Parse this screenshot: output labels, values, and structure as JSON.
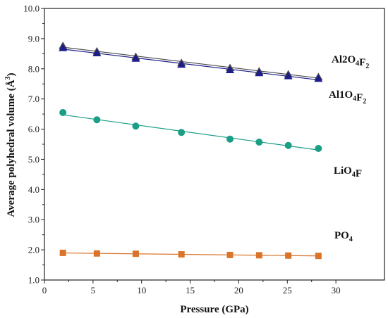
{
  "chart_data": {
    "type": "scatter",
    "xlabel": "Pressure (GPa)",
    "ylabel": "Average polyhedral volume (Å³)",
    "xlim": [
      0,
      35
    ],
    "ylim": [
      1.0,
      10.0
    ],
    "xticks": [
      0,
      5,
      10,
      15,
      20,
      25,
      30
    ],
    "yticks": [
      1.0,
      2.0,
      3.0,
      4.0,
      5.0,
      6.0,
      7.0,
      8.0,
      9.0,
      10.0
    ],
    "grid": false,
    "legend": "none",
    "series": [
      {
        "name": "Al2O4F2",
        "marker": "triangle",
        "color": "#4a4a4a",
        "fit_line": true,
        "x": [
          1.9,
          5.4,
          9.4,
          14.1,
          19.1,
          22.1,
          25.1,
          28.2
        ],
        "values": [
          8.76,
          8.58,
          8.4,
          8.2,
          8.03,
          7.92,
          7.82,
          7.73
        ]
      },
      {
        "name": "Al1O4F2",
        "marker": "triangle",
        "color": "#1c1c8a",
        "fit_line": true,
        "x": [
          1.9,
          5.4,
          9.4,
          14.1,
          19.1,
          22.1,
          25.1,
          28.2
        ],
        "values": [
          8.69,
          8.52,
          8.34,
          8.14,
          7.96,
          7.86,
          7.76,
          7.67
        ]
      },
      {
        "name": "LiO4F",
        "marker": "circle",
        "color": "#1a9e86",
        "fit_line": true,
        "x": [
          1.9,
          5.4,
          9.4,
          14.1,
          19.1,
          22.1,
          25.1,
          28.2
        ],
        "values": [
          6.55,
          6.31,
          6.1,
          5.89,
          5.67,
          5.57,
          5.46,
          5.36
        ]
      },
      {
        "name": "PO4",
        "marker": "square",
        "color": "#d9742a",
        "fit_line": true,
        "x": [
          1.9,
          5.4,
          9.4,
          14.1,
          19.1,
          22.1,
          25.1,
          28.2
        ],
        "values": [
          1.9,
          1.88,
          1.87,
          1.85,
          1.83,
          1.82,
          1.81,
          1.8
        ]
      }
    ]
  }
}
